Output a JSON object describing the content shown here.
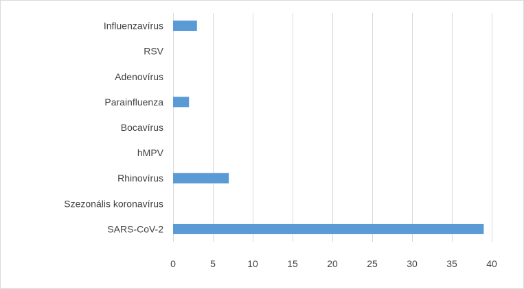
{
  "chart_data": {
    "type": "bar",
    "orientation": "horizontal",
    "categories": [
      "Influenzavírus",
      "RSV",
      "Adenovírus",
      "Parainfluenza",
      "Bocavírus",
      "hMPV",
      "Rhinovírus",
      "Szezonális koronavírus",
      "SARS-CoV-2"
    ],
    "values": [
      3,
      0,
      0,
      2,
      0,
      0,
      7,
      0,
      39
    ],
    "xlim": [
      0,
      40
    ],
    "xticks": [
      "0",
      "5",
      "10",
      "15",
      "20",
      "25",
      "30",
      "35",
      "40"
    ],
    "title": "",
    "xlabel": "",
    "ylabel": "",
    "grid": "vertical",
    "legend": "none",
    "bar_color": "#5b9bd5"
  }
}
